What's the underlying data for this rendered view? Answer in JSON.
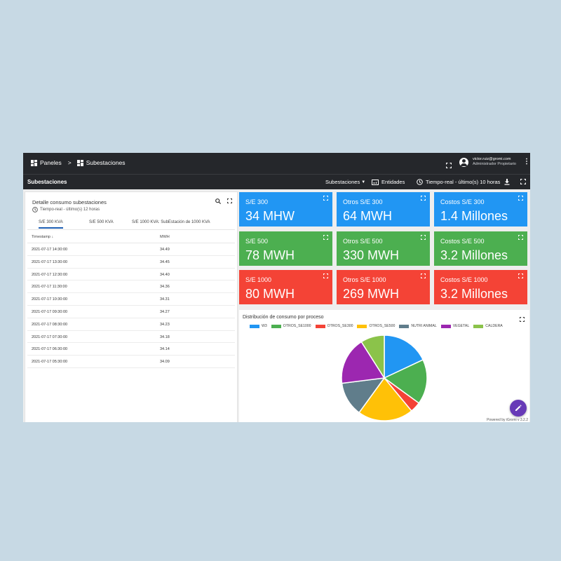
{
  "breadcrumb": {
    "root": "Paneles",
    "separator": ">",
    "current": "Subestaciones"
  },
  "user": {
    "email": "victor.ruiz@gromi.com",
    "role": "Administrador Propietario"
  },
  "subbar": {
    "title": "Subestaciones",
    "states_label": "Subestaciones",
    "entities_label": "Entidades",
    "timewindow_label": "Tiempo-real - último(s) 10 horas"
  },
  "table_widget": {
    "title": "Detalle consumo subestaciones",
    "timewindow": "Tiempo-real - último(s) 12 horas",
    "tabs": [
      "S/E 300 KVA",
      "S/E 500 KVA",
      "S/E 1000 KVA: SubEstación de 1000 KVA"
    ],
    "columns": [
      "Timestamp",
      "MWH"
    ],
    "sort_indicator": "↓",
    "rows": [
      [
        "2021-07-17 14:30:00",
        "34.49"
      ],
      [
        "2021-07-17 13:30:00",
        "34.45"
      ],
      [
        "2021-07-17 12:30:00",
        "34.40"
      ],
      [
        "2021-07-17 11:30:00",
        "34.36"
      ],
      [
        "2021-07-17 10:30:00",
        "34.31"
      ],
      [
        "2021-07-17 09:30:00",
        "34.27"
      ],
      [
        "2021-07-17 08:30:00",
        "34.23"
      ],
      [
        "2021-07-17 07:30:00",
        "34.18"
      ],
      [
        "2021-07-17 06:30:00",
        "34.14"
      ],
      [
        "2021-07-17 05:30:00",
        "34.09"
      ]
    ]
  },
  "cards": [
    {
      "label": "S/E 300",
      "value": "34 MHW",
      "color": "#2196f3"
    },
    {
      "label": "Otros S/E 300",
      "value": "64 MWH",
      "color": "#2196f3"
    },
    {
      "label": "Costos S/E 300",
      "value": "1.4 Millones",
      "color": "#2196f3"
    },
    {
      "label": "S/E 500",
      "value": "78 MWH",
      "color": "#4caf50"
    },
    {
      "label": "Otros S/E 500",
      "value": "330 MWH",
      "color": "#4caf50"
    },
    {
      "label": "Costos S/E 500",
      "value": "3.2 Millones",
      "color": "#4caf50"
    },
    {
      "label": "S/E 1000",
      "value": "80 MWH",
      "color": "#f44336"
    },
    {
      "label": "Otros S/E 1000",
      "value": "269 MWH",
      "color": "#f44336"
    },
    {
      "label": "Costos S/E 1000",
      "value": "3.2 Millones",
      "color": "#f44336"
    }
  ],
  "chart_widget": {
    "title": "Distribución de consumo por proceso",
    "footer": "Powered by iGromi v 3.2.2"
  },
  "chart_data": {
    "type": "pie",
    "legend_position": "top",
    "categories": [
      "W3",
      "OTROS_SE1000",
      "OTROS_SE300",
      "OTROS_SE500",
      "NUTRI ANIMAL",
      "VEGETAL",
      "CALDERA"
    ],
    "values": [
      18,
      17,
      4,
      21,
      13,
      18,
      9
    ],
    "colors": [
      "#2196f3",
      "#4caf50",
      "#f44336",
      "#ffc107",
      "#607d8b",
      "#9c27b0",
      "#8bc34a"
    ]
  }
}
